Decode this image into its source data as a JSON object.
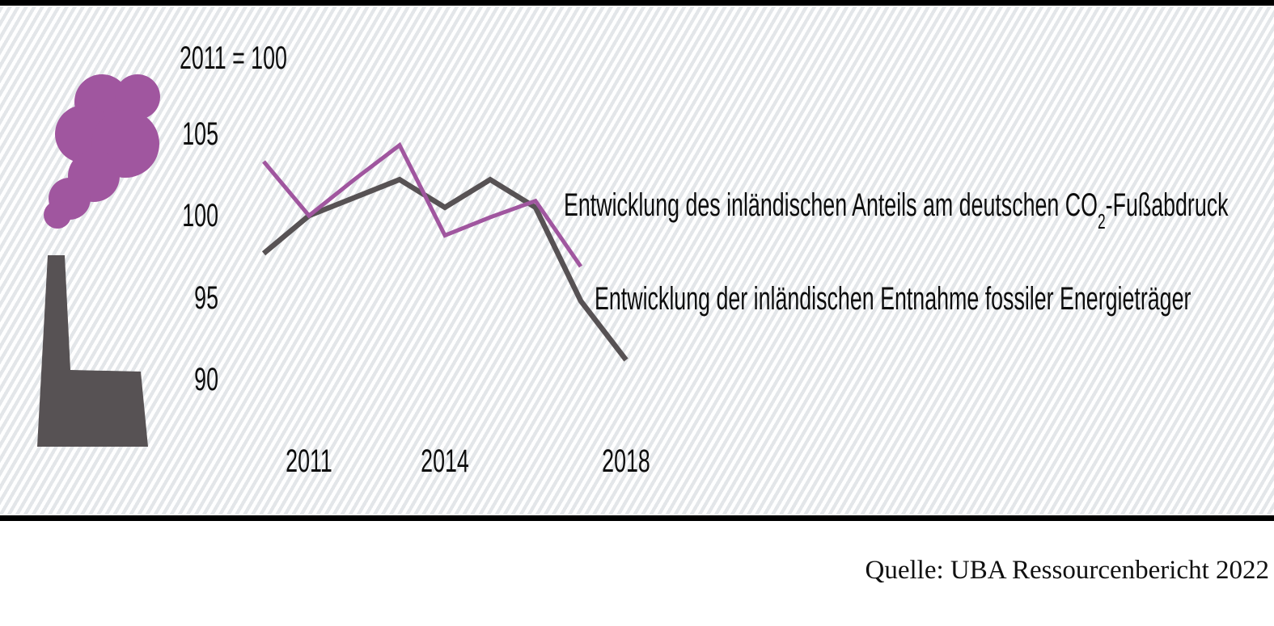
{
  "frame": {
    "index_note": "2011 = 100",
    "source": "Quelle: UBA Ressourcenbericht 2022"
  },
  "colors": {
    "co2_line": "#a0569f",
    "extraction_line": "#575254",
    "stripe": "#e3e6e9",
    "frame_bar": "#000000"
  },
  "chart_data": {
    "type": "line",
    "title": "2011 = 100",
    "x": [
      2010,
      2011,
      2012,
      2013,
      2014,
      2015,
      2016,
      2017,
      2018
    ],
    "xticks": [
      "2011",
      "2014",
      "2018"
    ],
    "yticks": [
      "105",
      "100",
      "95",
      "90"
    ],
    "ylim": [
      88,
      107
    ],
    "grid": false,
    "legend_position": "labels right of line ends",
    "series": [
      {
        "key": "co2-footprint",
        "name": "Entwicklung des inländischen Anteils am deutschen CO₂-Fußabdruck",
        "label_parts": {
          "pre": "Entwicklung des inländischen Anteils am deutschen CO",
          "sub": "2",
          "post": "-Fußabdruck"
        },
        "color": "#a0569f",
        "values": [
          103.3,
          100,
          102.2,
          104.3,
          98.8,
          99.9,
          100.9,
          96.9,
          null
        ]
      },
      {
        "key": "fossil-extraction",
        "name": "Entwicklung der inländischen Entnahme fossiler Energieträger",
        "label_parts": null,
        "color": "#575254",
        "values": [
          97.7,
          100,
          101.1,
          102.2,
          100.5,
          102.2,
          100.5,
          94.8,
          91.2
        ]
      }
    ]
  }
}
